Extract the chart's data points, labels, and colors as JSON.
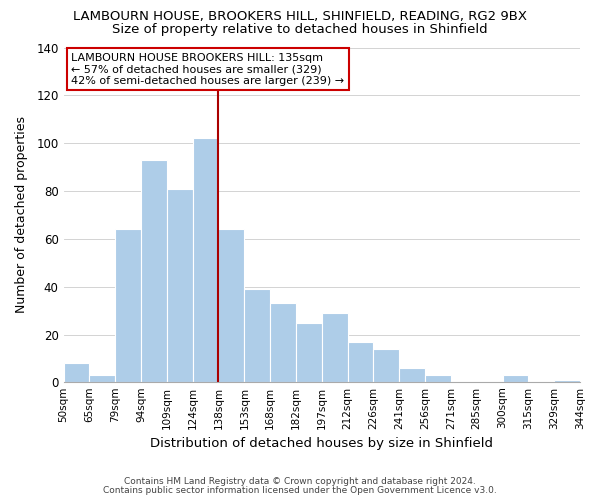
{
  "title": "LAMBOURN HOUSE, BROOKERS HILL, SHINFIELD, READING, RG2 9BX",
  "subtitle": "Size of property relative to detached houses in Shinfield",
  "xlabel": "Distribution of detached houses by size in Shinfield",
  "ylabel": "Number of detached properties",
  "bar_labels": [
    "50sqm",
    "65sqm",
    "79sqm",
    "94sqm",
    "109sqm",
    "124sqm",
    "138sqm",
    "153sqm",
    "168sqm",
    "182sqm",
    "197sqm",
    "212sqm",
    "226sqm",
    "241sqm",
    "256sqm",
    "271sqm",
    "285sqm",
    "300sqm",
    "315sqm",
    "329sqm",
    "344sqm"
  ],
  "bar_values": [
    8,
    3,
    64,
    93,
    81,
    102,
    64,
    39,
    33,
    25,
    29,
    17,
    14,
    6,
    3,
    0,
    0,
    3,
    0,
    1
  ],
  "bar_color": "#aecde8",
  "bar_edge_color": "white",
  "vline_color": "#aa0000",
  "ylim": [
    0,
    140
  ],
  "yticks": [
    0,
    20,
    40,
    60,
    80,
    100,
    120,
    140
  ],
  "annotation_line1": "LAMBOURN HOUSE BROOKERS HILL: 135sqm",
  "annotation_line2": "← 57% of detached houses are smaller (329)",
  "annotation_line3": "42% of semi-detached houses are larger (239) →",
  "ann_box_color": "#cc0000",
  "footer1": "Contains HM Land Registry data © Crown copyright and database right 2024.",
  "footer2": "Contains public sector information licensed under the Open Government Licence v3.0.",
  "background_color": "#ffffff",
  "grid_color": "#cccccc"
}
